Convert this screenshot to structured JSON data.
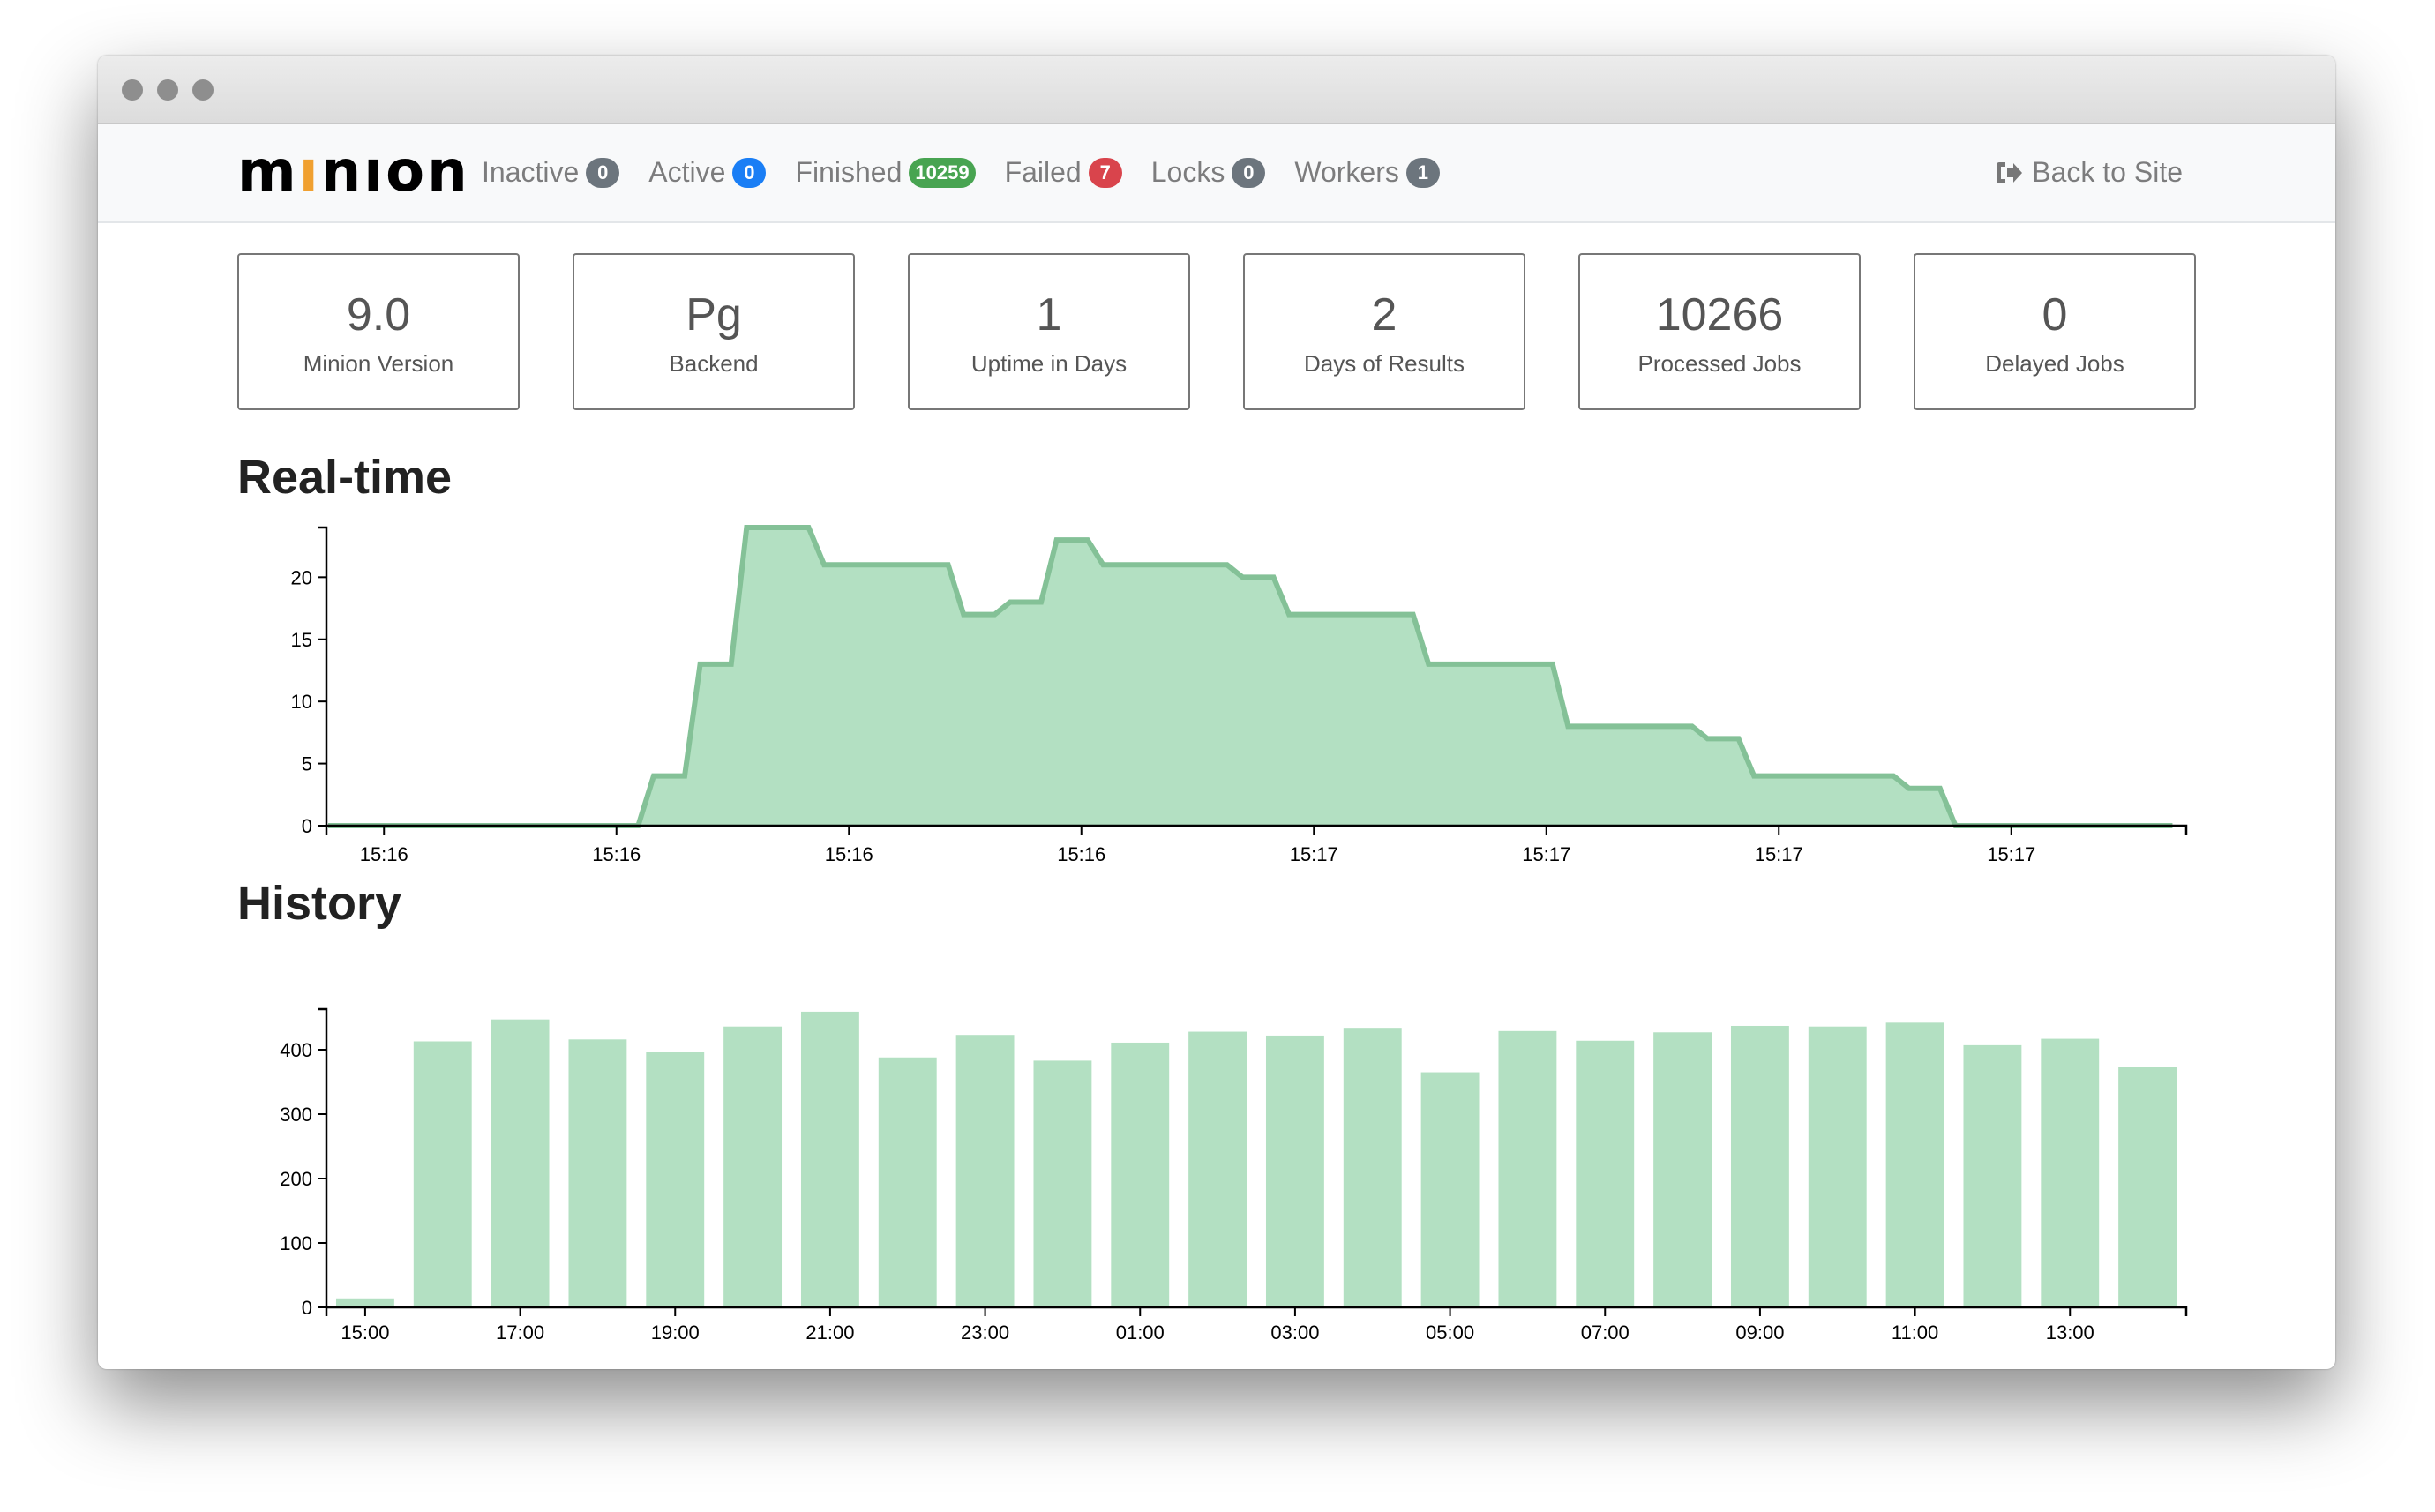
{
  "navbar": {
    "logo": "minion",
    "items": [
      {
        "label": "Inactive",
        "count": "0",
        "color": "#6c757d"
      },
      {
        "label": "Active",
        "count": "0",
        "color": "#1a7ef5"
      },
      {
        "label": "Finished",
        "count": "10259",
        "color": "#48a451"
      },
      {
        "label": "Failed",
        "count": "7",
        "color": "#d9444c"
      },
      {
        "label": "Locks",
        "count": "0",
        "color": "#6c757d"
      },
      {
        "label": "Workers",
        "count": "1",
        "color": "#6c757d"
      }
    ],
    "back_label": "Back to Site",
    "back_icon": "sign-out-icon"
  },
  "stats": [
    {
      "value": "9.0",
      "label": "Minion Version"
    },
    {
      "value": "Pg",
      "label": "Backend"
    },
    {
      "value": "1",
      "label": "Uptime in Days"
    },
    {
      "value": "2",
      "label": "Days of Results"
    },
    {
      "value": "10266",
      "label": "Processed Jobs"
    },
    {
      "value": "0",
      "label": "Delayed Jobs"
    }
  ],
  "sections": {
    "realtime": "Real-time",
    "history": "History"
  },
  "chart_data": [
    {
      "type": "area",
      "color": "#b3e0c2",
      "line_color": "#84c197",
      "ylim": [
        0,
        24
      ],
      "yticks": [
        0,
        5,
        10,
        15,
        20
      ],
      "xtick_labels": [
        "15:16",
        "15:16",
        "15:16",
        "15:16",
        "15:17",
        "15:17",
        "15:17",
        "15:17"
      ],
      "values": [
        0,
        0,
        0,
        0,
        0,
        0,
        0,
        0,
        0,
        0,
        0,
        0,
        0,
        0,
        0,
        0,
        0,
        0,
        0,
        0,
        0,
        4,
        4,
        4,
        13,
        13,
        13,
        24,
        24,
        24,
        24,
        24,
        21,
        21,
        21,
        21,
        21,
        21,
        21,
        21,
        21,
        17,
        17,
        17,
        18,
        18,
        18,
        23,
        23,
        23,
        21,
        21,
        21,
        21,
        21,
        21,
        21,
        21,
        21,
        20,
        20,
        20,
        17,
        17,
        17,
        17,
        17,
        17,
        17,
        17,
        17,
        13,
        13,
        13,
        13,
        13,
        13,
        13,
        13,
        13,
        8,
        8,
        8,
        8,
        8,
        8,
        8,
        8,
        8,
        7,
        7,
        7,
        4,
        4,
        4,
        4,
        4,
        4,
        4,
        4,
        4,
        4,
        3,
        3,
        3,
        0,
        0,
        0,
        0,
        0,
        0,
        0,
        0,
        0,
        0,
        0,
        0,
        0,
        0,
        0
      ]
    },
    {
      "type": "bar",
      "color": "#b3e0c2",
      "ylim": [
        0,
        463
      ],
      "yticks": [
        0,
        100,
        200,
        300,
        400
      ],
      "categories": [
        "15:00",
        "16:00",
        "17:00",
        "18:00",
        "19:00",
        "20:00",
        "21:00",
        "22:00",
        "23:00",
        "00:00",
        "01:00",
        "02:00",
        "03:00",
        "04:00",
        "05:00",
        "06:00",
        "07:00",
        "08:00",
        "09:00",
        "10:00",
        "11:00",
        "12:00",
        "13:00",
        "14:00"
      ],
      "xtick_labels": [
        "15:00",
        "17:00",
        "19:00",
        "21:00",
        "23:00",
        "01:00",
        "03:00",
        "05:00",
        "07:00",
        "09:00",
        "11:00",
        "13:00"
      ],
      "values": [
        14,
        413,
        447,
        416,
        396,
        436,
        459,
        388,
        423,
        383,
        411,
        428,
        422,
        434,
        365,
        429,
        414,
        427,
        437,
        436,
        442,
        407,
        417,
        373
      ]
    }
  ]
}
